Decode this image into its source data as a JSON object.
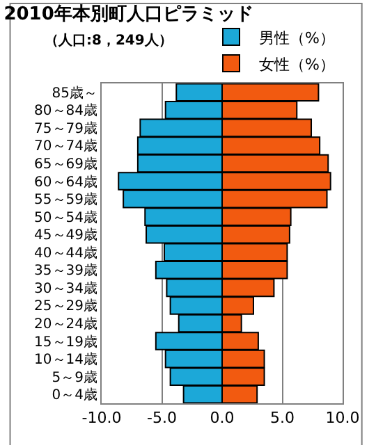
{
  "chart_data": {
    "type": "bar",
    "orientation": "horizontal",
    "stacked": true,
    "title": "2010年本別町人口ピラミッド",
    "subtitle": "（人口:8，249人）",
    "categories": [
      "85歳～",
      "80～84歳",
      "75～79歳",
      "70～74歳",
      "65～69歳",
      "60～64歳",
      "55～59歳",
      "50～54歳",
      "45～49歳",
      "40～44歳",
      "35～39歳",
      "30～34歳",
      "25～29歳",
      "20～24歳",
      "15～19歳",
      "10～14歳",
      "5～9歳",
      "0～4歳"
    ],
    "series": [
      {
        "name": "男性（%）",
        "color": "#1ca8d8",
        "values": [
          -3.8,
          -4.7,
          -6.8,
          -7.0,
          -7.0,
          -8.6,
          -8.2,
          -6.4,
          -6.3,
          -4.8,
          -5.5,
          -4.6,
          -4.3,
          -3.6,
          -5.5,
          -4.7,
          -4.3,
          -3.2
        ]
      },
      {
        "name": "女性（%）",
        "color": "#f25a10",
        "values": [
          8.0,
          6.2,
          7.4,
          8.1,
          8.8,
          9.0,
          8.7,
          5.7,
          5.6,
          5.4,
          5.4,
          4.3,
          2.6,
          1.6,
          3.0,
          3.5,
          3.5,
          2.9
        ]
      }
    ],
    "xlim": [
      -10,
      10
    ],
    "xticks": [
      {
        "value": -10,
        "label": "-10.0"
      },
      {
        "value": -5,
        "label": "-5.0"
      },
      {
        "value": 0,
        "label": "0.0"
      },
      {
        "value": 5,
        "label": "5.0"
      },
      {
        "value": 10,
        "label": "10.0"
      }
    ],
    "grid": "x",
    "legend": "top right"
  }
}
